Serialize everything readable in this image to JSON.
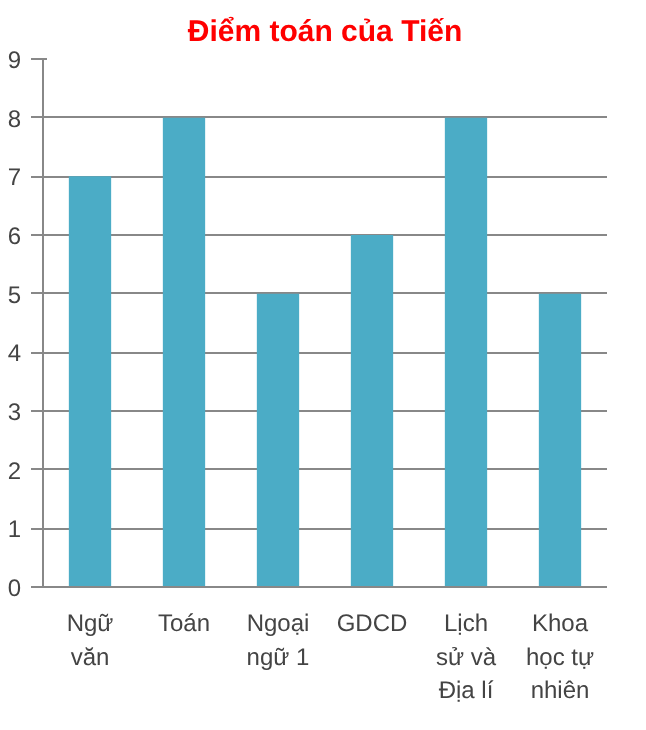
{
  "chart_data": {
    "type": "bar",
    "title": "Điểm toán của Tiến",
    "categories": [
      "Ngữ văn",
      "Toán",
      "Ngoại ngữ 1",
      "GDCD",
      "Lịch sử và Địa lí",
      "Khoa học tự nhiên"
    ],
    "values": [
      7,
      8,
      5,
      6,
      8,
      5
    ],
    "color": "#4bacc6",
    "ylim": [
      0,
      9
    ],
    "yticks": [
      0,
      1,
      2,
      3,
      4,
      5,
      6,
      7,
      8,
      9
    ],
    "grid": "y"
  }
}
